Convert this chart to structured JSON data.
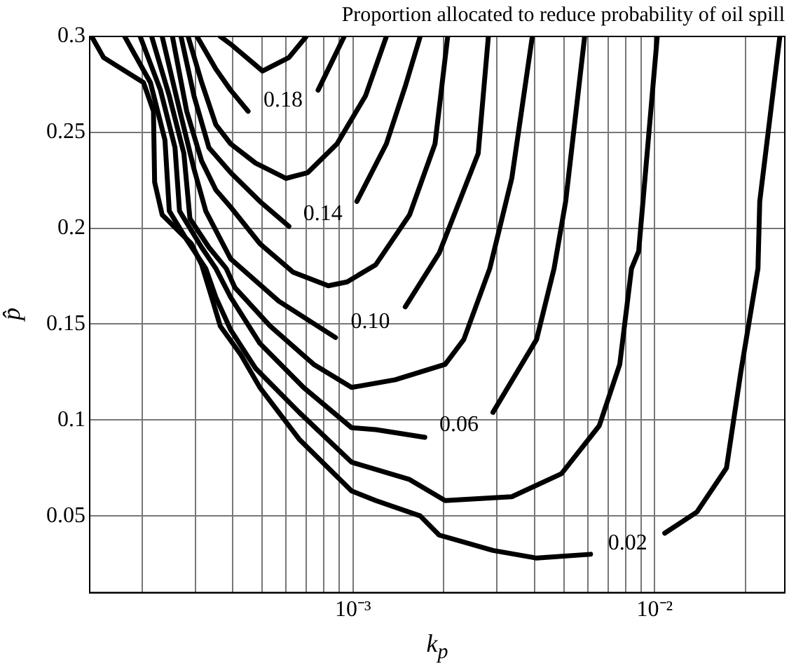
{
  "chart_data": {
    "type": "line",
    "title": "Proportion allocated to reduce probability of oil spill",
    "xlabel": "k$_{p}$",
    "ylabel": "p̂",
    "log": "x",
    "grid": true,
    "legend": false,
    "xlim": [
      0.000134,
      0.027
    ],
    "ylim": [
      0.01,
      0.3
    ],
    "xticks": [
      {
        "value": 0.0002,
        "label": null
      },
      {
        "value": 0.0003,
        "label": null
      },
      {
        "value": 0.0004,
        "label": null
      },
      {
        "value": 0.0005,
        "label": null
      },
      {
        "value": 0.0006,
        "label": null
      },
      {
        "value": 0.0007,
        "label": null
      },
      {
        "value": 0.0008,
        "label": null
      },
      {
        "value": 0.0009,
        "label": null
      },
      {
        "value": 0.001,
        "label": "10⁻³"
      },
      {
        "value": 0.002,
        "label": null
      },
      {
        "value": 0.003,
        "label": null
      },
      {
        "value": 0.004,
        "label": null
      },
      {
        "value": 0.005,
        "label": null
      },
      {
        "value": 0.006,
        "label": null
      },
      {
        "value": 0.007,
        "label": null
      },
      {
        "value": 0.008,
        "label": null
      },
      {
        "value": 0.009,
        "label": null
      },
      {
        "value": 0.01,
        "label": "10⁻²"
      },
      {
        "value": 0.02,
        "label": null
      }
    ],
    "yticks": [
      0.05,
      0.1,
      0.15,
      0.2,
      0.25,
      0.3
    ],
    "series": [
      {
        "name": "0.02",
        "color": "#000000",
        "x": [
          0.000136,
          0.000149,
          0.000202,
          0.000218,
          0.00022,
          0.000233,
          0.000291,
          0.000315,
          0.00034,
          0.000363,
          0.000425,
          0.000491,
          0.000663,
          0.000989,
          0.00119,
          0.00167,
          0.00193,
          0.00291,
          0.00406,
          0.00613,
          null,
          0.0108,
          0.0138,
          0.0173,
          0.0193,
          0.022,
          0.0223,
          0.026
        ],
        "values": [
          0.3,
          0.289,
          0.276,
          0.261,
          0.224,
          0.207,
          0.192,
          0.181,
          0.164,
          0.149,
          0.134,
          0.117,
          0.09,
          0.063,
          0.058,
          0.05,
          0.04,
          0.032,
          0.028,
          0.03,
          null,
          0.041,
          0.052,
          0.075,
          0.125,
          0.179,
          0.214,
          0.3
        ]
      },
      {
        "color": "#000000",
        "x": [
          0.000175,
          0.000213,
          0.000238,
          0.000246,
          0.000281,
          0.000325,
          0.000351,
          0.000393,
          0.000475,
          0.000663,
          0.000989,
          0.00154,
          0.00202,
          0.00336,
          0.00491,
          0.00655,
          0.00766,
          0.00838,
          0.00885,
          0.0102
        ],
        "values": [
          0.3,
          0.276,
          0.246,
          0.209,
          0.194,
          0.179,
          0.164,
          0.147,
          0.127,
          0.104,
          0.078,
          0.069,
          0.058,
          0.06,
          0.072,
          0.097,
          0.129,
          0.179,
          0.188,
          0.3
        ]
      },
      {
        "name": "0.06",
        "color": "#000000",
        "x": [
          0.000197,
          0.00023,
          0.000257,
          0.000266,
          0.000315,
          0.000351,
          0.000393,
          0.000491,
          0.000685,
          0.000989,
          0.00119,
          0.00173,
          null,
          0.00291,
          0.00406,
          0.00464,
          0.00507,
          0.00586
        ],
        "values": [
          0.3,
          0.272,
          0.242,
          0.209,
          0.19,
          0.179,
          0.164,
          0.14,
          0.117,
          0.096,
          0.095,
          0.091,
          null,
          0.104,
          0.142,
          0.179,
          0.214,
          0.3
        ]
      },
      {
        "color": "#000000",
        "x": [
          0.000215,
          0.000246,
          0.000275,
          0.000288,
          0.000333,
          0.00038,
          0.000406,
          0.000531,
          0.000741,
          0.000989,
          0.00138,
          0.00202,
          0.00233,
          0.00284,
          0.00336,
          0.00393
        ],
        "values": [
          0.3,
          0.269,
          0.239,
          0.205,
          0.19,
          0.179,
          0.169,
          0.149,
          0.129,
          0.117,
          0.121,
          0.129,
          0.142,
          0.179,
          0.226,
          0.3
        ]
      },
      {
        "name": "0.10",
        "color": "#000000",
        "x": [
          0.000233,
          0.000263,
          0.000297,
          0.000325,
          0.000393,
          0.000567,
          0.000875,
          null,
          0.00149,
          0.00193,
          0.0026,
          0.00281
        ],
        "values": [
          0.3,
          0.265,
          0.231,
          0.209,
          0.184,
          0.162,
          0.143,
          null,
          0.159,
          0.187,
          0.239,
          0.3
        ]
      },
      {
        "color": "#000000",
        "x": [
          0.000252,
          0.000281,
          0.000315,
          0.000351,
          0.000393,
          0.000491,
          0.000634,
          0.000828,
          0.000956,
          0.00119,
          0.00154,
          0.00187,
          0.00206
        ],
        "values": [
          0.3,
          0.261,
          0.235,
          0.22,
          0.211,
          0.192,
          0.177,
          0.17,
          0.172,
          0.181,
          0.207,
          0.244,
          0.3
        ]
      },
      {
        "name": "0.14",
        "color": "#000000",
        "x": [
          0.000269,
          0.000297,
          0.000333,
          0.000393,
          0.000491,
          0.000613,
          null,
          0.00103,
          0.00129,
          0.00149,
          0.00167
        ],
        "values": [
          0.3,
          0.269,
          0.242,
          0.229,
          0.214,
          0.201,
          null,
          0.214,
          0.244,
          0.274,
          0.3
        ]
      },
      {
        "color": "#000000",
        "x": [
          0.000284,
          0.000315,
          0.000351,
          0.000393,
          0.000475,
          0.0006,
          0.000708,
          0.000885,
          0.0011,
          0.00129
        ],
        "values": [
          0.3,
          0.276,
          0.254,
          0.244,
          0.234,
          0.226,
          0.229,
          0.244,
          0.269,
          0.3
        ]
      },
      {
        "name": "0.18",
        "color": "#000000",
        "x": [
          0.000304,
          0.000351,
          0.000393,
          0.000449,
          null,
          0.000766,
          0.000935
        ],
        "values": [
          0.3,
          0.283,
          0.272,
          0.261,
          null,
          0.272,
          0.3
        ]
      },
      {
        "color": "#000000",
        "x": [
          0.000363,
          0.000393,
          0.000501,
          0.000613,
          0.0007
        ],
        "values": [
          0.3,
          0.296,
          0.282,
          0.289,
          0.3
        ]
      }
    ]
  }
}
